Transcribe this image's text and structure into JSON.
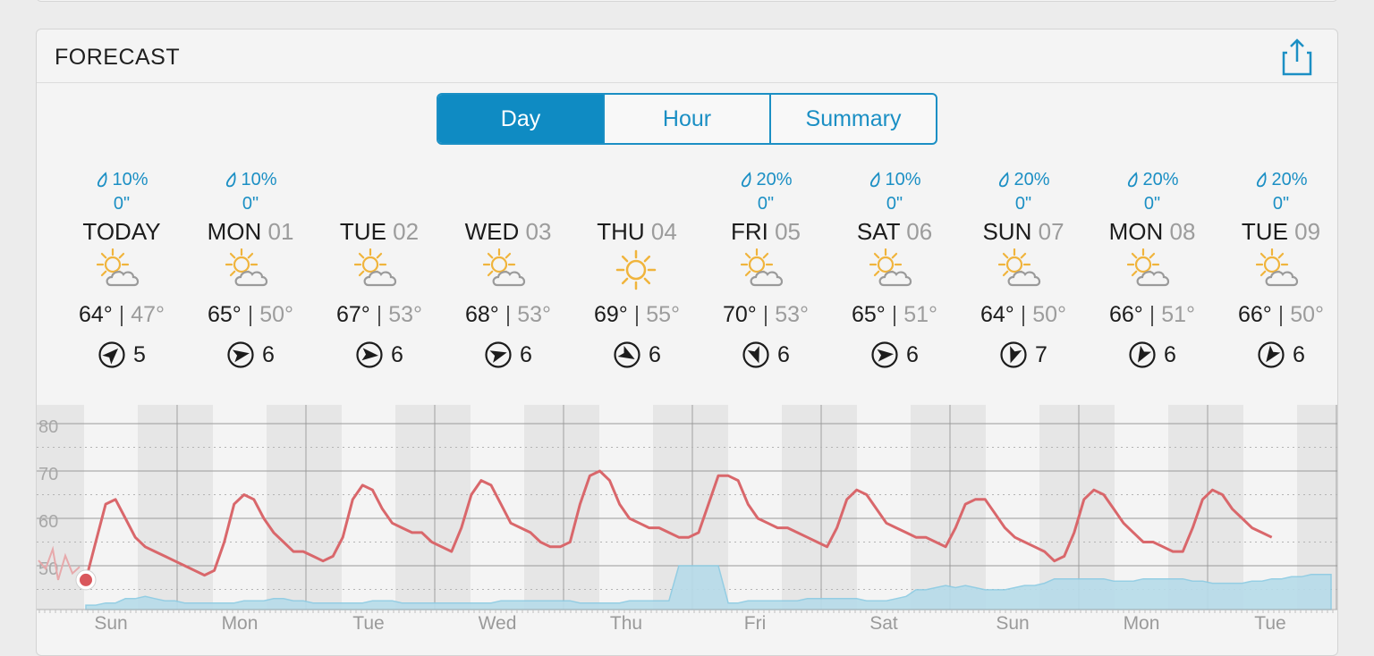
{
  "header": {
    "title": "FORECAST",
    "share_icon": "share-icon"
  },
  "tabs": [
    {
      "label": "Day",
      "active": true
    },
    {
      "label": "Hour",
      "active": false
    },
    {
      "label": "Summary",
      "active": false
    }
  ],
  "colors": {
    "accent": "#1b8fc4",
    "high_line": "#d9676b",
    "precip_fill": "#b7dcea",
    "sun": "#f0b43c",
    "cloud": "#9a9a9a"
  },
  "days": [
    {
      "precip": "10%",
      "amount": "0\"",
      "name": "TODAY",
      "num": "",
      "icon": "partly-cloudy-icon",
      "high": "64°",
      "low": "47°",
      "wind_speed": "5",
      "wind_dir_deg": 45
    },
    {
      "precip": "10%",
      "amount": "0\"",
      "name": "MON",
      "num": "01",
      "icon": "partly-cloudy-icon",
      "high": "65°",
      "low": "50°",
      "wind_speed": "6",
      "wind_dir_deg": 80
    },
    {
      "precip": "",
      "amount": "",
      "name": "TUE",
      "num": "02",
      "icon": "partly-cloudy-icon",
      "high": "67°",
      "low": "53°",
      "wind_speed": "6",
      "wind_dir_deg": 95
    },
    {
      "precip": "",
      "amount": "",
      "name": "WED",
      "num": "03",
      "icon": "partly-cloudy-icon",
      "high": "68°",
      "low": "53°",
      "wind_speed": "6",
      "wind_dir_deg": 75
    },
    {
      "precip": "",
      "amount": "",
      "name": "THU",
      "num": "04",
      "icon": "sunny-icon",
      "high": "69°",
      "low": "55°",
      "wind_speed": "6",
      "wind_dir_deg": 120
    },
    {
      "precip": "20%",
      "amount": "0\"",
      "name": "FRI",
      "num": "05",
      "icon": "partly-cloudy-icon",
      "high": "70°",
      "low": "53°",
      "wind_speed": "6",
      "wind_dir_deg": 160
    },
    {
      "precip": "10%",
      "amount": "0\"",
      "name": "SAT",
      "num": "06",
      "icon": "partly-cloudy-icon",
      "high": "65°",
      "low": "51°",
      "wind_speed": "6",
      "wind_dir_deg": 85
    },
    {
      "precip": "20%",
      "amount": "0\"",
      "name": "SUN",
      "num": "07",
      "icon": "partly-cloudy-icon",
      "high": "64°",
      "low": "50°",
      "wind_speed": "7",
      "wind_dir_deg": 200
    },
    {
      "precip": "20%",
      "amount": "0\"",
      "name": "MON",
      "num": "08",
      "icon": "partly-cloudy-icon",
      "high": "66°",
      "low": "51°",
      "wind_speed": "6",
      "wind_dir_deg": 210
    },
    {
      "precip": "20%",
      "amount": "0\"",
      "name": "TUE",
      "num": "09",
      "icon": "partly-cloudy-icon",
      "high": "66°",
      "low": "50°",
      "wind_speed": "6",
      "wind_dir_deg": 215
    }
  ],
  "chart_data": {
    "type": "line",
    "y_ticks": [
      "80",
      "70",
      "60",
      "50"
    ],
    "ylim": [
      40,
      85
    ],
    "grid": true,
    "x_labels": [
      "Sun",
      "Mon",
      "Tue",
      "Wed",
      "Thu",
      "Fri",
      "Sat",
      "Sun",
      "Mon",
      "Tue"
    ],
    "series": [
      {
        "kind": "temperature",
        "values": [
          47,
          55,
          63,
          64,
          60,
          56,
          54,
          53,
          52,
          51,
          50,
          49,
          48,
          49,
          55,
          63,
          65,
          64,
          60,
          57,
          55,
          53,
          53,
          52,
          51,
          52,
          56,
          64,
          67,
          66,
          62,
          59,
          58,
          57,
          57,
          55,
          54,
          53,
          58,
          65,
          68,
          67,
          63,
          59,
          58,
          57,
          55,
          54,
          54,
          55,
          63,
          69,
          70,
          68,
          63,
          60,
          59,
          58,
          58,
          57,
          56,
          56,
          57,
          63,
          69,
          69,
          68,
          63,
          60,
          59,
          58,
          58,
          57,
          56,
          55,
          54,
          58,
          64,
          66,
          65,
          62,
          59,
          58,
          57,
          56,
          56,
          55,
          54,
          58,
          63,
          64,
          64,
          61,
          58,
          56,
          55,
          54,
          53,
          51,
          52,
          57,
          64,
          66,
          65,
          62,
          59,
          57,
          55,
          55,
          54,
          53,
          53,
          58,
          64,
          66,
          65,
          62,
          60,
          58,
          57,
          56
        ]
      },
      {
        "kind": "precipitation_chance",
        "values": [
          2,
          2,
          3,
          3,
          5,
          5,
          6,
          5,
          4,
          4,
          3,
          3,
          3,
          3,
          3,
          3,
          4,
          4,
          4,
          5,
          5,
          4,
          4,
          3,
          3,
          3,
          3,
          3,
          3,
          4,
          4,
          4,
          3,
          3,
          3,
          3,
          3,
          3,
          3,
          3,
          3,
          3,
          4,
          4,
          4,
          4,
          4,
          4,
          4,
          4,
          3,
          3,
          3,
          3,
          3,
          4,
          4,
          4,
          4,
          4,
          20,
          20,
          20,
          20,
          20,
          3,
          3,
          4,
          4,
          4,
          4,
          4,
          4,
          5,
          5,
          5,
          5,
          5,
          5,
          4,
          4,
          4,
          5,
          6,
          9,
          9,
          10,
          11,
          10,
          11,
          10,
          9,
          9,
          9,
          10,
          11,
          11,
          12,
          14,
          14,
          14,
          14,
          14,
          14,
          13,
          13,
          13,
          14,
          14,
          14,
          14,
          14,
          13,
          13,
          12,
          12,
          12,
          12,
          13,
          13,
          14,
          14,
          15,
          15,
          16,
          16,
          16
        ]
      }
    ]
  }
}
